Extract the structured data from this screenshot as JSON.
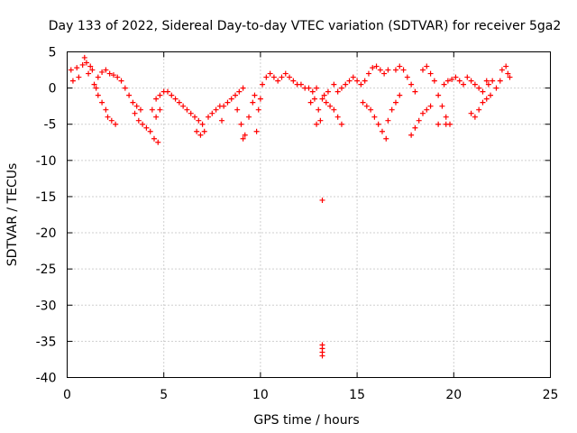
{
  "chart_data": {
    "type": "scatter",
    "title": "Day 133 of 2022, Sidereal Day-to-day VTEC variation (SDTVAR) for receiver 5ga2",
    "xlabel": "GPS time / hours",
    "ylabel": "SDTVAR / TECUs",
    "xlim": [
      0,
      25
    ],
    "ylim": [
      -40,
      5
    ],
    "xticks": [
      0,
      5,
      10,
      15,
      20,
      25
    ],
    "yticks": [
      5,
      0,
      -5,
      -10,
      -15,
      -20,
      -25,
      -30,
      -35,
      -40
    ],
    "grid": true,
    "marker": "+",
    "color": "#ff0000",
    "series": [
      {
        "name": "SDTVAR",
        "points": [
          [
            0.2,
            2.5
          ],
          [
            0.3,
            1.0
          ],
          [
            0.5,
            2.8
          ],
          [
            0.6,
            1.5
          ],
          [
            0.8,
            3.2
          ],
          [
            0.9,
            4.2
          ],
          [
            1.0,
            3.5
          ],
          [
            1.1,
            2.0
          ],
          [
            1.2,
            3.0
          ],
          [
            1.3,
            2.5
          ],
          [
            1.4,
            0.5
          ],
          [
            1.5,
            0.0
          ],
          [
            1.6,
            -1.0
          ],
          [
            1.8,
            -2.0
          ],
          [
            2.0,
            -3.0
          ],
          [
            2.1,
            -4.0
          ],
          [
            2.3,
            -4.5
          ],
          [
            2.5,
            -5.0
          ],
          [
            1.6,
            1.5
          ],
          [
            1.8,
            2.2
          ],
          [
            2.0,
            2.5
          ],
          [
            2.2,
            2.0
          ],
          [
            2.4,
            1.8
          ],
          [
            2.6,
            1.5
          ],
          [
            2.8,
            1.0
          ],
          [
            3.0,
            0.0
          ],
          [
            3.2,
            -1.0
          ],
          [
            3.4,
            -2.0
          ],
          [
            3.6,
            -2.5
          ],
          [
            3.8,
            -3.0
          ],
          [
            3.5,
            -3.5
          ],
          [
            3.7,
            -4.5
          ],
          [
            3.9,
            -5.0
          ],
          [
            4.1,
            -5.5
          ],
          [
            4.3,
            -6.0
          ],
          [
            4.5,
            -7.0
          ],
          [
            4.7,
            -7.5
          ],
          [
            4.4,
            -3.0
          ],
          [
            4.6,
            -4.0
          ],
          [
            4.8,
            -3.0
          ],
          [
            4.6,
            -1.5
          ],
          [
            4.8,
            -1.0
          ],
          [
            5.0,
            -0.5
          ],
          [
            5.2,
            -0.5
          ],
          [
            5.4,
            -1.0
          ],
          [
            5.6,
            -1.5
          ],
          [
            5.8,
            -2.0
          ],
          [
            6.0,
            -2.5
          ],
          [
            6.2,
            -3.0
          ],
          [
            6.4,
            -3.5
          ],
          [
            6.6,
            -4.0
          ],
          [
            6.8,
            -4.5
          ],
          [
            7.0,
            -5.0
          ],
          [
            6.7,
            -6.0
          ],
          [
            6.9,
            -6.5
          ],
          [
            7.1,
            -6.0
          ],
          [
            7.3,
            -4.0
          ],
          [
            7.5,
            -3.5
          ],
          [
            7.7,
            -3.0
          ],
          [
            7.9,
            -2.5
          ],
          [
            8.1,
            -2.5
          ],
          [
            8.3,
            -2.0
          ],
          [
            8.5,
            -1.5
          ],
          [
            8.7,
            -1.0
          ],
          [
            8.9,
            -0.5
          ],
          [
            9.1,
            0.0
          ],
          [
            8.8,
            -3.0
          ],
          [
            9.0,
            -5.0
          ],
          [
            9.1,
            -7.0
          ],
          [
            9.2,
            -6.5
          ],
          [
            9.4,
            -4.0
          ],
          [
            9.6,
            -2.0
          ],
          [
            9.7,
            -1.0
          ],
          [
            9.9,
            -3.0
          ],
          [
            10.0,
            -1.5
          ],
          [
            10.1,
            0.5
          ],
          [
            10.3,
            1.5
          ],
          [
            10.5,
            2.0
          ],
          [
            10.7,
            1.5
          ],
          [
            10.9,
            1.0
          ],
          [
            11.1,
            1.5
          ],
          [
            11.3,
            2.0
          ],
          [
            11.5,
            1.5
          ],
          [
            11.7,
            1.0
          ],
          [
            11.9,
            0.5
          ],
          [
            12.1,
            0.5
          ],
          [
            12.3,
            0.0
          ],
          [
            12.5,
            0.0
          ],
          [
            12.7,
            -0.5
          ],
          [
            12.9,
            0.0
          ],
          [
            12.6,
            -2.0
          ],
          [
            12.8,
            -1.5
          ],
          [
            13.0,
            -3.0
          ],
          [
            12.9,
            -5.0
          ],
          [
            13.1,
            -4.5
          ],
          [
            13.2,
            -1.5
          ],
          [
            13.4,
            -2.0
          ],
          [
            13.6,
            -2.5
          ],
          [
            13.8,
            -3.0
          ],
          [
            14.0,
            -4.0
          ],
          [
            14.2,
            -5.0
          ],
          [
            13.3,
            -1.0
          ],
          [
            13.5,
            -0.5
          ],
          [
            13.8,
            0.5
          ],
          [
            14.0,
            -0.5
          ],
          [
            14.2,
            0.0
          ],
          [
            14.4,
            0.5
          ],
          [
            14.6,
            1.0
          ],
          [
            14.8,
            1.5
          ],
          [
            15.0,
            1.0
          ],
          [
            15.2,
            0.5
          ],
          [
            15.4,
            1.0
          ],
          [
            15.6,
            2.0
          ],
          [
            15.8,
            2.8
          ],
          [
            16.0,
            3.0
          ],
          [
            16.2,
            2.5
          ],
          [
            16.4,
            2.0
          ],
          [
            16.6,
            2.5
          ],
          [
            15.3,
            -2.0
          ],
          [
            15.5,
            -2.5
          ],
          [
            15.7,
            -3.0
          ],
          [
            15.9,
            -4.0
          ],
          [
            16.1,
            -5.0
          ],
          [
            16.3,
            -6.0
          ],
          [
            16.5,
            -7.0
          ],
          [
            16.6,
            -4.5
          ],
          [
            16.8,
            -3.0
          ],
          [
            17.0,
            -2.0
          ],
          [
            17.2,
            -1.0
          ],
          [
            17.0,
            2.5
          ],
          [
            17.2,
            3.0
          ],
          [
            17.4,
            2.5
          ],
          [
            17.6,
            1.5
          ],
          [
            17.8,
            0.5
          ],
          [
            18.0,
            -0.5
          ],
          [
            17.8,
            -6.5
          ],
          [
            18.0,
            -5.5
          ],
          [
            18.2,
            -4.5
          ],
          [
            18.4,
            -3.5
          ],
          [
            18.6,
            -3.0
          ],
          [
            18.8,
            -2.5
          ],
          [
            18.4,
            2.5
          ],
          [
            18.6,
            3.0
          ],
          [
            18.8,
            2.0
          ],
          [
            19.0,
            1.0
          ],
          [
            19.2,
            -1.0
          ],
          [
            19.4,
            -2.5
          ],
          [
            19.6,
            -4.0
          ],
          [
            19.2,
            -5.0
          ],
          [
            19.6,
            -5.0
          ],
          [
            19.8,
            -5.0
          ],
          [
            19.5,
            0.5
          ],
          [
            19.7,
            1.0
          ],
          [
            19.9,
            1.2
          ],
          [
            20.1,
            1.5
          ],
          [
            20.3,
            1.0
          ],
          [
            20.5,
            0.5
          ],
          [
            20.7,
            1.5
          ],
          [
            20.9,
            1.0
          ],
          [
            21.1,
            0.5
          ],
          [
            21.3,
            0.0
          ],
          [
            21.5,
            -0.5
          ],
          [
            21.7,
            1.0
          ],
          [
            20.9,
            -3.5
          ],
          [
            21.1,
            -4.0
          ],
          [
            21.3,
            -3.0
          ],
          [
            21.5,
            -2.0
          ],
          [
            21.7,
            -1.5
          ],
          [
            21.9,
            -1.0
          ],
          [
            21.8,
            0.5
          ],
          [
            22.0,
            1.0
          ],
          [
            22.2,
            0.0
          ],
          [
            22.4,
            1.0
          ],
          [
            22.5,
            2.5
          ],
          [
            22.7,
            3.0
          ],
          [
            22.8,
            2.0
          ],
          [
            22.9,
            1.5
          ],
          [
            8.0,
            -4.5
          ],
          [
            9.8,
            -6.0
          ],
          [
            13.2,
            -15.5
          ],
          [
            13.2,
            -35.5
          ],
          [
            13.2,
            -36.0
          ],
          [
            13.2,
            -36.5
          ],
          [
            13.2,
            -37.0
          ]
        ]
      }
    ]
  }
}
